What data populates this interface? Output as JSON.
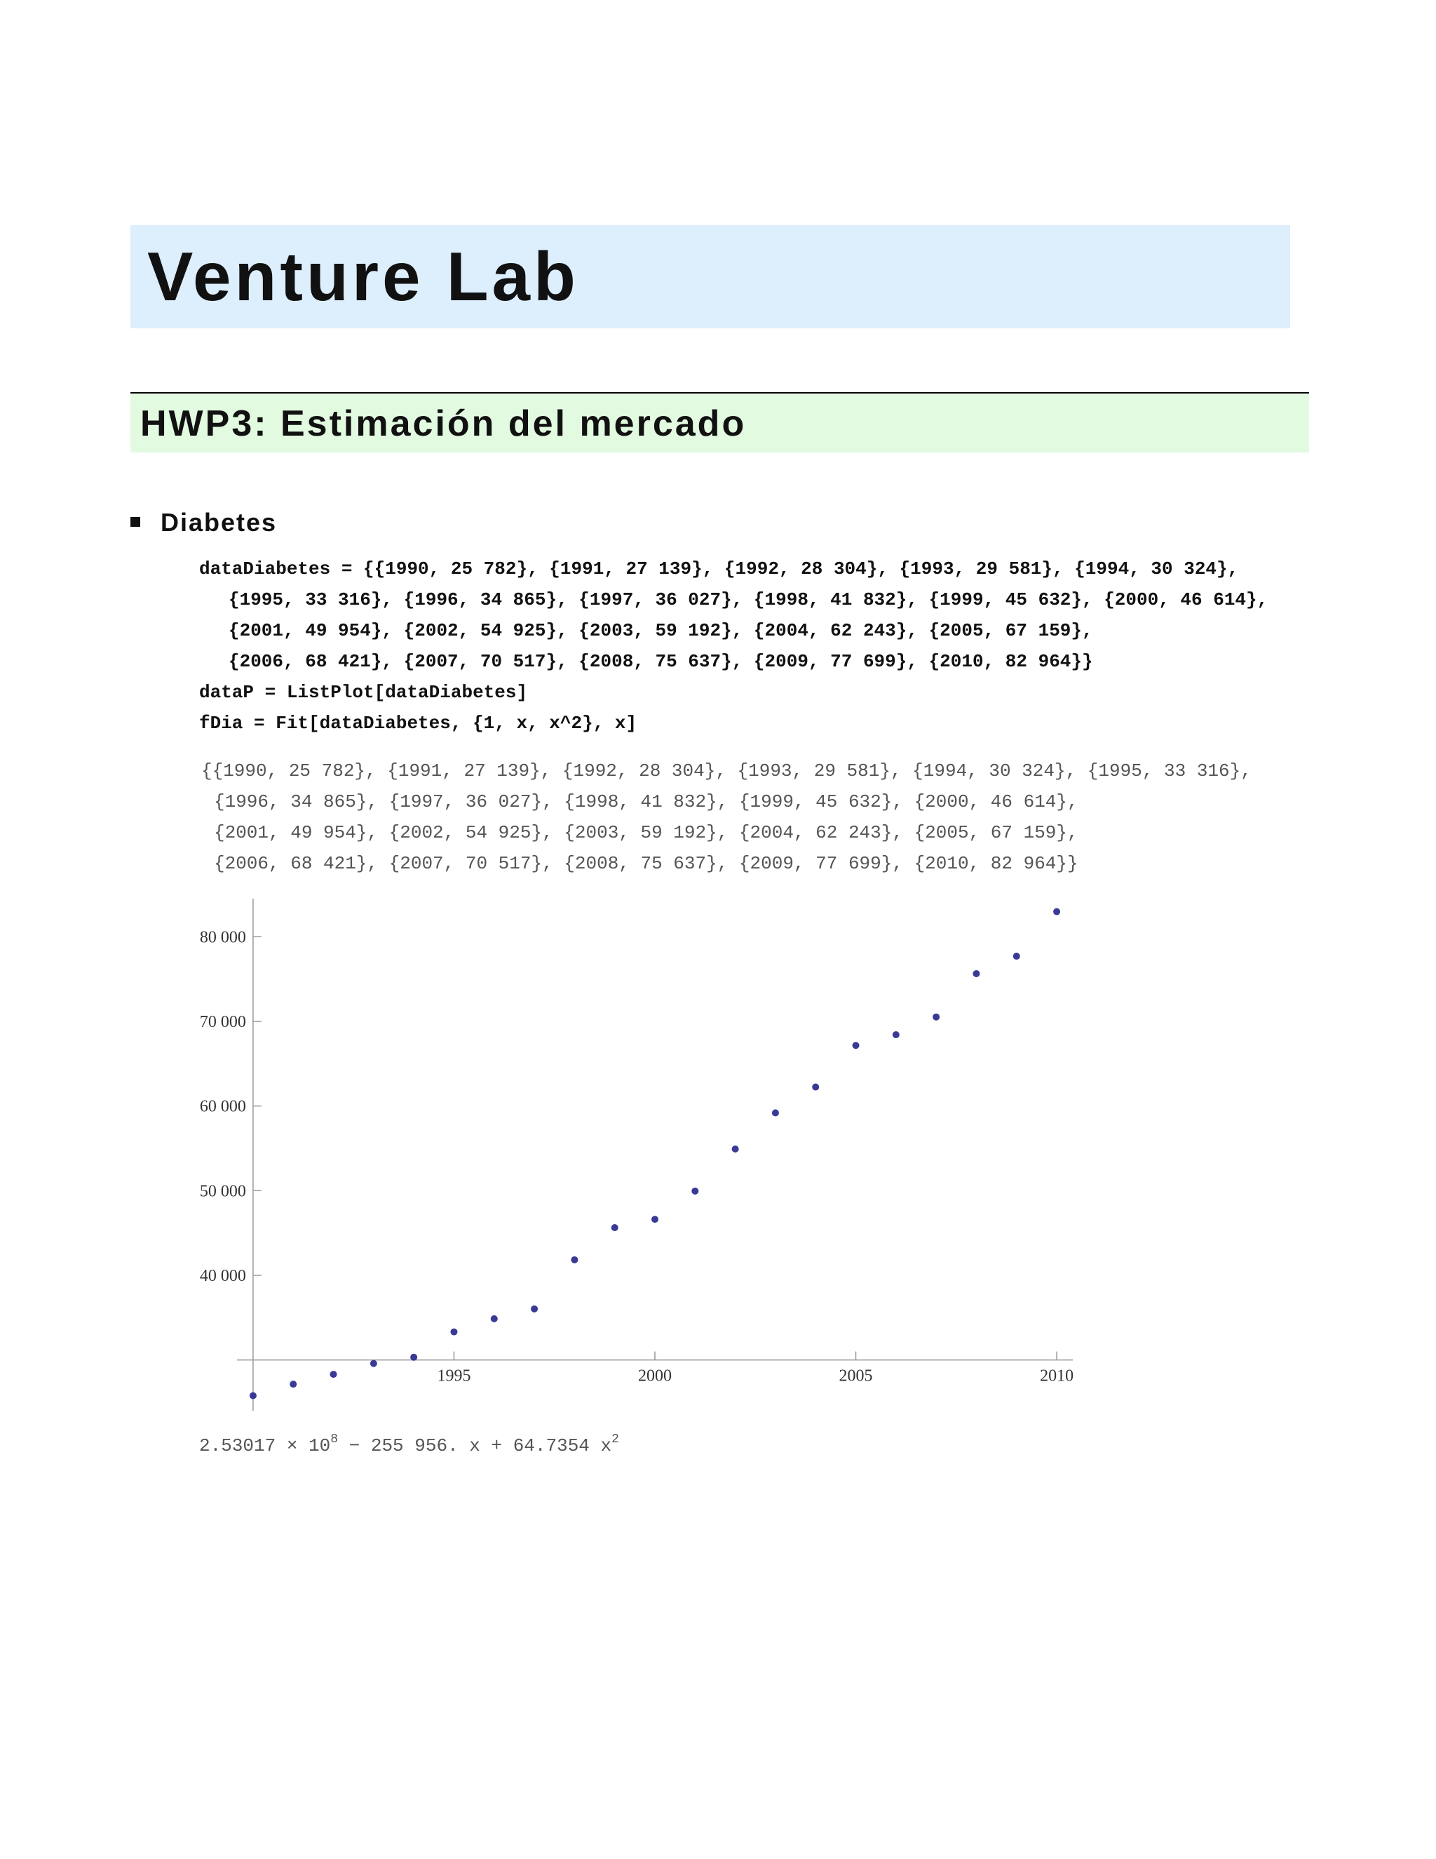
{
  "title": "Venture Lab",
  "section": "HWP3: Estimación del mercado",
  "subsection": "Diabetes",
  "input_lines": [
    "dataDiabetes = {{1990, 25 782}, {1991, 27 139}, {1992, 28 304}, {1993, 29 581}, {1994, 30 324},",
    "{1995, 33 316}, {1996, 34 865}, {1997, 36 027}, {1998, 41 832}, {1999, 45 632}, {2000, 46 614},",
    "{2001, 49 954}, {2002, 54 925}, {2003, 59 192}, {2004, 62 243}, {2005, 67 159},",
    "{2006, 68 421}, {2007, 70 517}, {2008, 75 637}, {2009, 77 699}, {2010, 82 964}}",
    "dataP = ListPlot[dataDiabetes]",
    "fDia = Fit[dataDiabetes, {1, x, x^2}, x]"
  ],
  "output_lines": [
    "{{1990, 25 782}, {1991, 27 139}, {1992, 28 304}, {1993, 29 581}, {1994, 30 324}, {1995, 33 316},",
    "{1996, 34 865}, {1997, 36 027}, {1998, 41 832}, {1999, 45 632}, {2000, 46 614},",
    "{2001, 49 954}, {2002, 54 925}, {2003, 59 192}, {2004, 62 243}, {2005, 67 159},",
    "{2006, 68 421}, {2007, 70 517}, {2008, 75 637}, {2009, 77 699}, {2010, 82 964}}"
  ],
  "chart_data": {
    "type": "scatter",
    "color": "#3a3a96",
    "x": [
      1990,
      1991,
      1992,
      1993,
      1994,
      1995,
      1996,
      1997,
      1998,
      1999,
      2000,
      2001,
      2002,
      2003,
      2004,
      2005,
      2006,
      2007,
      2008,
      2009,
      2010
    ],
    "values": [
      25782,
      27139,
      28304,
      29581,
      30324,
      33316,
      34865,
      36027,
      41832,
      45632,
      46614,
      49954,
      54925,
      59192,
      62243,
      67159,
      68421,
      70517,
      75637,
      77699,
      82964
    ],
    "xlim": [
      1989.6,
      2010.4
    ],
    "ylim": [
      24000,
      84500
    ],
    "axis_origin": [
      1990,
      30000
    ],
    "xticks": [
      1995,
      2000,
      2005,
      2010
    ],
    "yticks": [
      {
        "value": 40000,
        "label": "40 000"
      },
      {
        "value": 50000,
        "label": "50 000"
      },
      {
        "value": 60000,
        "label": "60 000"
      },
      {
        "value": 70000,
        "label": "70 000"
      },
      {
        "value": 80000,
        "label": "80 000"
      }
    ]
  },
  "fit_result": {
    "coefficient": "2.53017 × 10",
    "exponent1": "8",
    "rest": " − 255 956. x + 64.7354 x",
    "exponent2": "2"
  }
}
